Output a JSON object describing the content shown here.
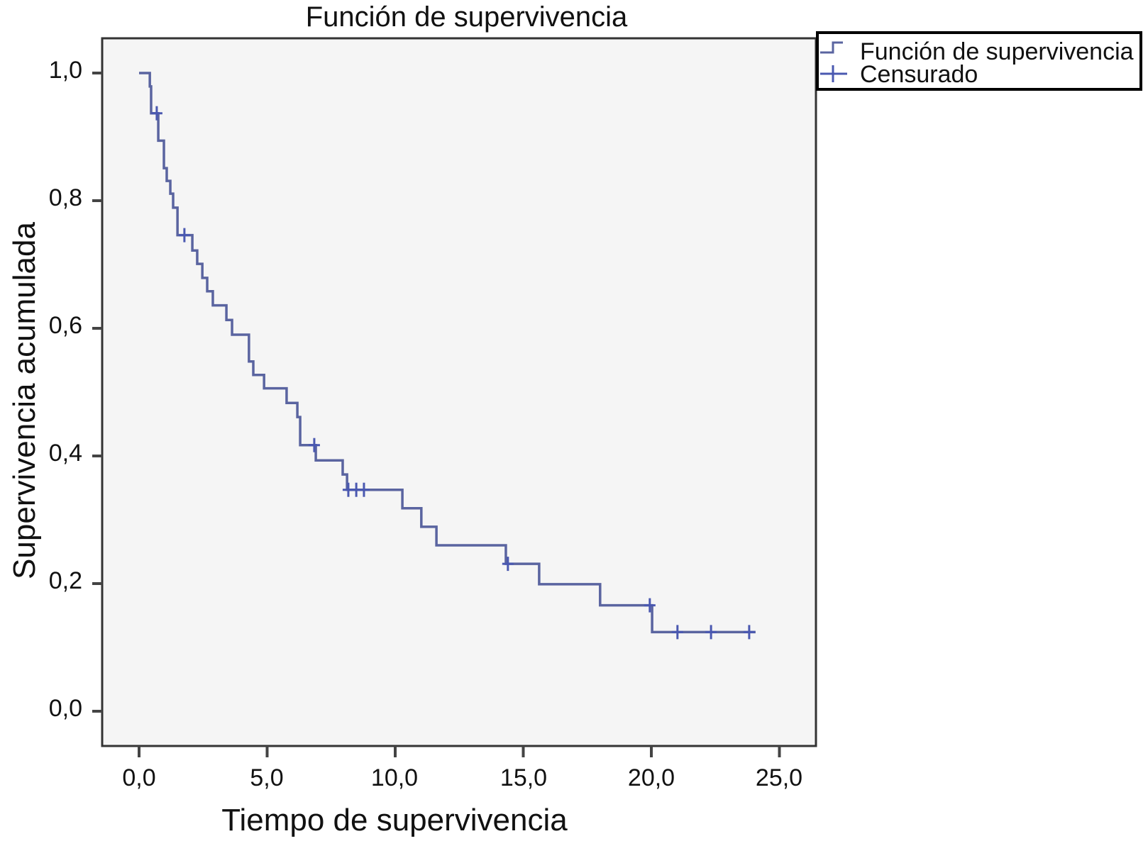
{
  "chart_data": {
    "type": "line",
    "subtype": "kaplan-meier step",
    "title": "Función de supervivencia",
    "xlabel": "Tiempo de supervivencia",
    "ylabel": "Supervivencia acumulada",
    "xlim": [
      -1.3,
      26.4
    ],
    "ylim": [
      -0.05,
      1.05
    ],
    "xticks": [
      "0,0",
      "5,0",
      "10,0",
      "15,0",
      "20,0",
      "25,0"
    ],
    "yticks": [
      "0,0",
      "0,2",
      "0,4",
      "0,6",
      "0,8",
      "1,0"
    ],
    "grid": false,
    "legend_position": "outside right top",
    "legend": [
      "Función de supervivencia",
      "Censurado"
    ],
    "series": [
      {
        "name": "Función de supervivencia",
        "color": "#5a64a0",
        "steps": [
          {
            "t": 0.0,
            "s": 1.0
          },
          {
            "t": 0.42,
            "s": 0.979
          },
          {
            "t": 0.47,
            "s": 0.937
          },
          {
            "t": 0.75,
            "s": 0.894
          },
          {
            "t": 0.97,
            "s": 0.851
          },
          {
            "t": 1.08,
            "s": 0.831
          },
          {
            "t": 1.22,
            "s": 0.811
          },
          {
            "t": 1.33,
            "s": 0.789
          },
          {
            "t": 1.5,
            "s": 0.746
          },
          {
            "t": 2.08,
            "s": 0.722
          },
          {
            "t": 2.27,
            "s": 0.701
          },
          {
            "t": 2.47,
            "s": 0.679
          },
          {
            "t": 2.66,
            "s": 0.658
          },
          {
            "t": 2.88,
            "s": 0.636
          },
          {
            "t": 3.41,
            "s": 0.613
          },
          {
            "t": 3.63,
            "s": 0.59
          },
          {
            "t": 4.29,
            "s": 0.548
          },
          {
            "t": 4.46,
            "s": 0.527
          },
          {
            "t": 4.88,
            "s": 0.506
          },
          {
            "t": 5.76,
            "s": 0.483
          },
          {
            "t": 6.18,
            "s": 0.461
          },
          {
            "t": 6.29,
            "s": 0.417
          },
          {
            "t": 6.9,
            "s": 0.393
          },
          {
            "t": 7.95,
            "s": 0.371
          },
          {
            "t": 8.12,
            "s": 0.347
          },
          {
            "t": 10.28,
            "s": 0.318
          },
          {
            "t": 11.02,
            "s": 0.289
          },
          {
            "t": 11.61,
            "s": 0.26
          },
          {
            "t": 14.32,
            "s": 0.231
          },
          {
            "t": 15.62,
            "s": 0.199
          },
          {
            "t": 18.0,
            "s": 0.166
          },
          {
            "t": 20.03,
            "s": 0.124
          },
          {
            "t": 24.07,
            "s": 0.124
          }
        ]
      },
      {
        "name": "Censurado",
        "color": "#4a58b0",
        "points": [
          {
            "t": 0.69,
            "s": 0.937
          },
          {
            "t": 1.77,
            "s": 0.746
          },
          {
            "t": 6.84,
            "s": 0.417
          },
          {
            "t": 8.17,
            "s": 0.347
          },
          {
            "t": 8.48,
            "s": 0.347
          },
          {
            "t": 8.78,
            "s": 0.347
          },
          {
            "t": 14.4,
            "s": 0.231
          },
          {
            "t": 19.94,
            "s": 0.166
          },
          {
            "t": 21.02,
            "s": 0.124
          },
          {
            "t": 22.33,
            "s": 0.124
          },
          {
            "t": 23.82,
            "s": 0.124
          }
        ]
      }
    ]
  },
  "labels": {
    "title": "Función de supervivencia",
    "xlabel": "Tiempo de supervivencia",
    "ylabel": "Supervivencia acumulada",
    "legend_survival": "Función de supervivencia",
    "legend_censored": "Censurado"
  },
  "yticks": [
    "1,0",
    "0,8",
    "0,6",
    "0,4",
    "0,2",
    "0,0"
  ],
  "xticks": [
    "0,0",
    "5,0",
    "10,0",
    "15,0",
    "20,0",
    "25,0"
  ]
}
